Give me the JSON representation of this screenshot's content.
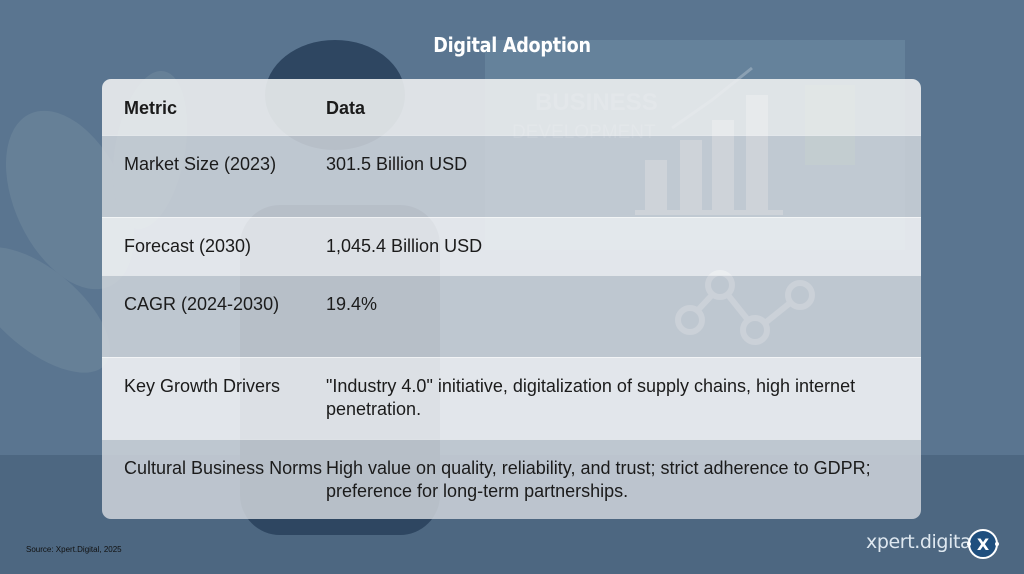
{
  "title": "Digital Adoption",
  "table": {
    "headers": [
      "Metric",
      "Data"
    ],
    "rows": [
      {
        "metric": "Market Size (2023)",
        "data": "301.5 Billion USD"
      },
      {
        "metric": "Forecast (2030)",
        "data": "1,045.4 Billion USD"
      },
      {
        "metric": "CAGR (2024-2030)",
        "data": "19.4%"
      },
      {
        "metric": "Key Growth Drivers",
        "data": "\"Industry 4.0\" initiative, digitalization of supply chains, high internet penetration."
      },
      {
        "metric": "Cultural Business Norms",
        "data": "High value on quality, reliability, and trust; strict adherence to GDPR; preference for long-term partnerships."
      }
    ]
  },
  "background": {
    "sign_line1": "BUSINESS",
    "sign_line2": "DEVELOPMENT"
  },
  "footer": {
    "source": "Source: Xpert.Digital, 2025",
    "brand": "xpert.digital",
    "logo_letter": "X"
  },
  "colors": {
    "background": "#5a7590",
    "logo": "#1f4f7e"
  }
}
